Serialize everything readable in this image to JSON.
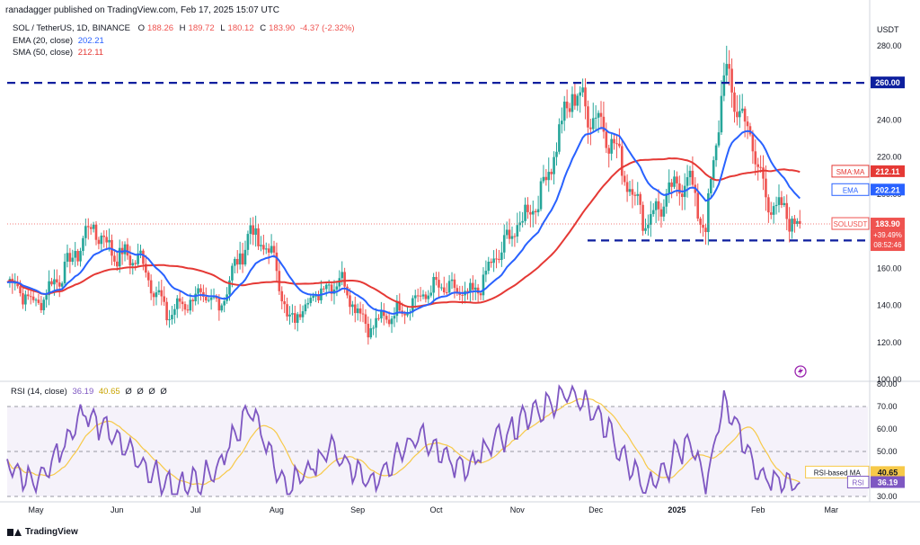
{
  "header": {
    "publisher_line": "ranadagger published on TradingView.com, Feb 17, 2025 15:07 UTC"
  },
  "legend": {
    "symbol": "SOL / TetherUS, 1D, BINANCE",
    "ohlc": {
      "o_label": "O",
      "o": "188.26",
      "h_label": "H",
      "h": "189.72",
      "l_label": "L",
      "l": "180.12",
      "c_label": "C",
      "c": "183.90",
      "change": "-4.37 (-2.32%)"
    },
    "ema": {
      "label": "EMA (20, close)",
      "value": "202.21"
    },
    "sma": {
      "label": "SMA (50, close)",
      "value": "212.11"
    }
  },
  "rsi_legend": {
    "label": "RSI (14, close)",
    "v1": "36.19",
    "v2": "40.65",
    "z1": "Ø",
    "z2": "Ø",
    "z3": "Ø",
    "z4": "Ø"
  },
  "footer": {
    "brand": "TradingView"
  },
  "colors": {
    "up": "#26a69a",
    "down": "#ef5350",
    "ema": "#2962ff",
    "sma": "#e53935",
    "rsi": "#7e57c2",
    "rsi_ma": "#f7c948",
    "level": "#0d1f9e"
  },
  "chart_data": [
    {
      "type": "candlestick",
      "title": "SOL / TetherUS, 1D, BINANCE",
      "ylabel": "USDT",
      "ylim": [
        100,
        295
      ],
      "y_ticks": [
        "100.00",
        "120.00",
        "140.00",
        "160.00",
        "180.00",
        "200.00",
        "220.00",
        "240.00",
        "260.00",
        "280.00"
      ],
      "x_ticks": [
        "May",
        "Jun",
        "Jul",
        "Aug",
        "Sep",
        "Oct",
        "Nov",
        "Dec",
        "2025",
        "Feb",
        "Mar"
      ],
      "horizontal_levels": [
        {
          "value": 260.0,
          "label": "260.00"
        },
        {
          "value": 175.0,
          "label": "175.00"
        }
      ],
      "price_tags": [
        {
          "label": "SMA:MA",
          "value": "212.11",
          "y": 212.11
        },
        {
          "label": "EMA",
          "value": "202.21",
          "y": 202.21
        },
        {
          "label": "SOLUSDT",
          "value": "183.90",
          "y": 183.9,
          "extra1": "+39.49%",
          "extra2": "08:52:46"
        }
      ],
      "close_series_monthly_approx": [
        {
          "date": "2024-04-20",
          "close": 155
        },
        {
          "date": "2024-05-01",
          "close": 140
        },
        {
          "date": "2024-05-15",
          "close": 165
        },
        {
          "date": "2024-05-22",
          "close": 183
        },
        {
          "date": "2024-06-01",
          "close": 167
        },
        {
          "date": "2024-06-10",
          "close": 165
        },
        {
          "date": "2024-06-20",
          "close": 135
        },
        {
          "date": "2024-07-01",
          "close": 145
        },
        {
          "date": "2024-07-10",
          "close": 140
        },
        {
          "date": "2024-07-22",
          "close": 180
        },
        {
          "date": "2024-08-01",
          "close": 163
        },
        {
          "date": "2024-08-05",
          "close": 130
        },
        {
          "date": "2024-08-15",
          "close": 145
        },
        {
          "date": "2024-08-25",
          "close": 155
        },
        {
          "date": "2024-09-05",
          "close": 128
        },
        {
          "date": "2024-09-20",
          "close": 140
        },
        {
          "date": "2024-10-01",
          "close": 150
        },
        {
          "date": "2024-10-15",
          "close": 145
        },
        {
          "date": "2024-10-28",
          "close": 175
        },
        {
          "date": "2024-11-10",
          "close": 200
        },
        {
          "date": "2024-11-22",
          "close": 255
        },
        {
          "date": "2024-12-05",
          "close": 235
        },
        {
          "date": "2024-12-20",
          "close": 185
        },
        {
          "date": "2025-01-05",
          "close": 210
        },
        {
          "date": "2025-01-12",
          "close": 180
        },
        {
          "date": "2025-01-19",
          "close": 265
        },
        {
          "date": "2025-01-28",
          "close": 235
        },
        {
          "date": "2025-02-05",
          "close": 195
        },
        {
          "date": "2025-02-17",
          "close": 183.9
        }
      ],
      "ema20_last": 202.21,
      "sma50_last": 212.11
    },
    {
      "type": "line",
      "title": "RSI (14, close)",
      "ylim": [
        30,
        80
      ],
      "y_ticks": [
        "30.00",
        "40.00",
        "50.00",
        "60.00",
        "70.00",
        "80.00"
      ],
      "bands": {
        "upper": 70,
        "middle": 50,
        "lower": 30
      },
      "series": [
        {
          "name": "RSI",
          "last": 36.19
        },
        {
          "name": "RSI-based MA",
          "last": 40.65
        }
      ],
      "rsi_monthly_approx": [
        {
          "date": "2024-04-20",
          "rsi": 45
        },
        {
          "date": "2024-05-01",
          "rsi": 35
        },
        {
          "date": "2024-05-20",
          "rsi": 68
        },
        {
          "date": "2024-06-05",
          "rsi": 50
        },
        {
          "date": "2024-06-22",
          "rsi": 33
        },
        {
          "date": "2024-07-08",
          "rsi": 40
        },
        {
          "date": "2024-07-22",
          "rsi": 69
        },
        {
          "date": "2024-08-05",
          "rsi": 32
        },
        {
          "date": "2024-08-22",
          "rsi": 52
        },
        {
          "date": "2024-09-06",
          "rsi": 35
        },
        {
          "date": "2024-09-25",
          "rsi": 58
        },
        {
          "date": "2024-10-10",
          "rsi": 42
        },
        {
          "date": "2024-10-30",
          "rsi": 60
        },
        {
          "date": "2024-11-20",
          "rsi": 77
        },
        {
          "date": "2024-12-05",
          "rsi": 62
        },
        {
          "date": "2024-12-20",
          "rsi": 32
        },
        {
          "date": "2025-01-06",
          "rsi": 55
        },
        {
          "date": "2025-01-12",
          "rsi": 36
        },
        {
          "date": "2025-01-19",
          "rsi": 72
        },
        {
          "date": "2025-02-03",
          "rsi": 38
        },
        {
          "date": "2025-02-17",
          "rsi": 36.19
        }
      ]
    }
  ]
}
